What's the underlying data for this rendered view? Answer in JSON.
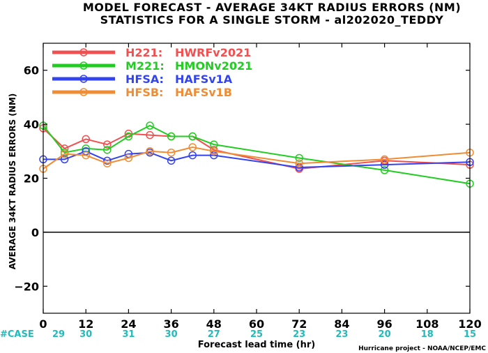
{
  "chart_data": {
    "type": "line",
    "title_line1": "MODEL FORECAST - AVERAGE 34KT RADIUS ERRORS (NM)",
    "title_line2": "STATISTICS FOR A SINGLE STORM - al202020_TEDDY",
    "ylabel": "AVERAGE 34KT RADIUS ERRORS (NM)",
    "xlabel": "Forecast lead time (hr)",
    "credit": "Hurricane project - NOAA/NCEP/EMC",
    "xlim": [
      0,
      120
    ],
    "ylim": [
      -30,
      70
    ],
    "xticks": [
      0,
      12,
      24,
      36,
      48,
      60,
      72,
      84,
      96,
      108,
      120
    ],
    "yticks": [
      -20,
      0,
      20,
      40,
      60
    ],
    "xtick_labels": [
      "0",
      "12",
      "24",
      "36",
      "48",
      "60",
      "72",
      "84",
      "96",
      "108",
      "120"
    ],
    "ytick_labels": [
      "−20",
      "0",
      "20",
      "40",
      "60"
    ],
    "case_label": "#CASE",
    "case_counts": [
      "29",
      "30",
      "31",
      "30",
      "27",
      "25",
      "23",
      "23",
      "20",
      "18",
      "15"
    ],
    "legend_placement": "top-left",
    "series": [
      {
        "model": "H221:",
        "name": "HWRFv2021",
        "color": "#f05050",
        "x": [
          0,
          6,
          12,
          18,
          24,
          30,
          36,
          42,
          48,
          72,
          96,
          120
        ],
        "y": [
          38.5,
          31,
          34.5,
          32.5,
          36.5,
          36,
          35.5,
          35.5,
          30.5,
          23.5,
          26.5,
          25
        ]
      },
      {
        "model": "M221:",
        "name": "HMONv2021",
        "color": "#22cc22",
        "x": [
          0,
          6,
          12,
          18,
          24,
          30,
          36,
          42,
          48,
          72,
          96,
          120
        ],
        "y": [
          39.5,
          29.5,
          31,
          30.5,
          35.5,
          39.5,
          35.5,
          35.5,
          32.5,
          27.5,
          23,
          18
        ]
      },
      {
        "model": "HFSA:",
        "name": "HAFSv1A",
        "color": "#3344ee",
        "x": [
          0,
          6,
          12,
          18,
          24,
          30,
          36,
          42,
          48,
          72,
          96,
          120
        ],
        "y": [
          27,
          27,
          30,
          26.5,
          29,
          29.5,
          26.5,
          28.5,
          28.5,
          24,
          25,
          26
        ]
      },
      {
        "model": "HFSB:",
        "name": "HAFSv1B",
        "color": "#f08c33",
        "x": [
          0,
          6,
          12,
          18,
          24,
          30,
          36,
          42,
          48,
          72,
          96,
          120
        ],
        "y": [
          23.5,
          29,
          28.5,
          25.5,
          27.5,
          30,
          29.5,
          31.5,
          30,
          25.5,
          27,
          29.5
        ]
      }
    ]
  }
}
